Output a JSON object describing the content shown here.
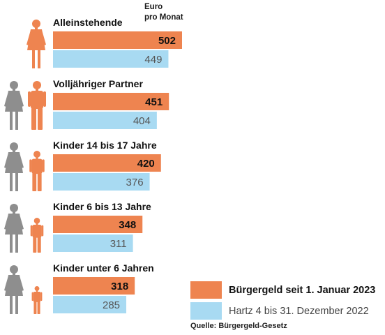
{
  "chart_data": {
    "type": "bar",
    "unit_label": "Euro pro Monat",
    "categories": [
      "Alleinstehende",
      "Volljähriger Partner",
      "Kinder 14 bis 17 Jahre",
      "Kinder 6 bis 13 Jahre",
      "Kinder unter 6 Jahren"
    ],
    "series": [
      {
        "name": "Bürgergeld seit 1. Januar 2023",
        "values": [
          502,
          451,
          420,
          348,
          318
        ],
        "color": "#ee8450"
      },
      {
        "name": "Hartz 4 bis 31. Dezember 2022",
        "values": [
          449,
          404,
          376,
          311,
          285
        ],
        "color": "#a8daf2"
      }
    ],
    "icons": [
      [
        "woman-figure-orange"
      ],
      [
        "woman-figure-gray",
        "man-figure-orange"
      ],
      [
        "woman-figure-gray",
        "teen-figure-orange"
      ],
      [
        "woman-figure-gray",
        "child-figure-orange"
      ],
      [
        "woman-figure-gray",
        "toddler-figure-orange"
      ]
    ],
    "source": "Quelle: Bürgergeld-Gesetz"
  },
  "colors": {
    "orange": "#ee8450",
    "blue": "#a8daf2",
    "gray": "#8e8e8e"
  }
}
